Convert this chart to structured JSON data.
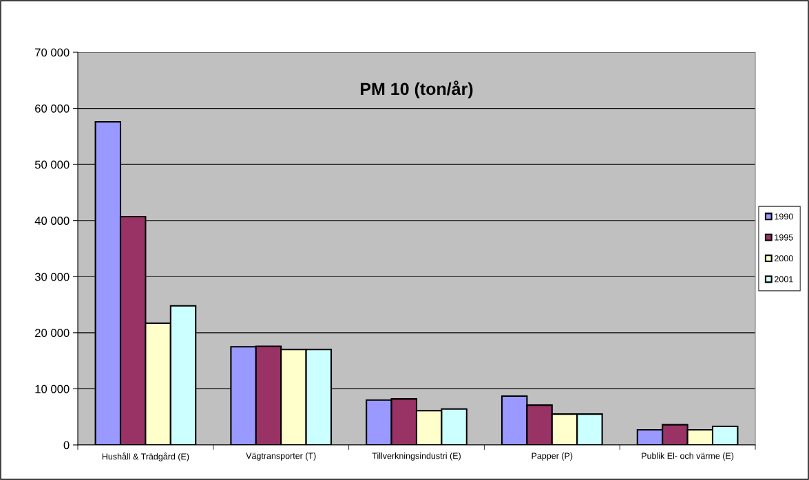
{
  "chart_data": {
    "type": "bar",
    "title": "PM 10 (ton/år)",
    "categories": [
      "Hushåll & Trädgård (E)",
      "Vägtransporter (T)",
      "Tillverkningsindustri (E)",
      "Papper (P)",
      "Publik El- och värme (E)"
    ],
    "series": [
      {
        "name": "1990",
        "color": "#9999ff",
        "values": [
          57600,
          17500,
          8000,
          8700,
          2700
        ]
      },
      {
        "name": "1995",
        "color": "#993366",
        "values": [
          40700,
          17600,
          8200,
          7100,
          3600
        ]
      },
      {
        "name": "2000",
        "color": "#ffffcc",
        "values": [
          21700,
          17000,
          6100,
          5500,
          2700
        ]
      },
      {
        "name": "2001",
        "color": "#ccffff",
        "values": [
          24800,
          17000,
          6400,
          5500,
          3300
        ]
      }
    ],
    "ylim": [
      0,
      70000
    ],
    "yticks": [
      {
        "value": 0,
        "label": "0"
      },
      {
        "value": 10000,
        "label": "10 000"
      },
      {
        "value": 20000,
        "label": "20 000"
      },
      {
        "value": 30000,
        "label": "30 000"
      },
      {
        "value": 40000,
        "label": "40 000"
      },
      {
        "value": 50000,
        "label": "50 000"
      },
      {
        "value": 60000,
        "label": "60 000"
      },
      {
        "value": 70000,
        "label": "70 000"
      }
    ],
    "grid": "y",
    "legend": "right"
  }
}
